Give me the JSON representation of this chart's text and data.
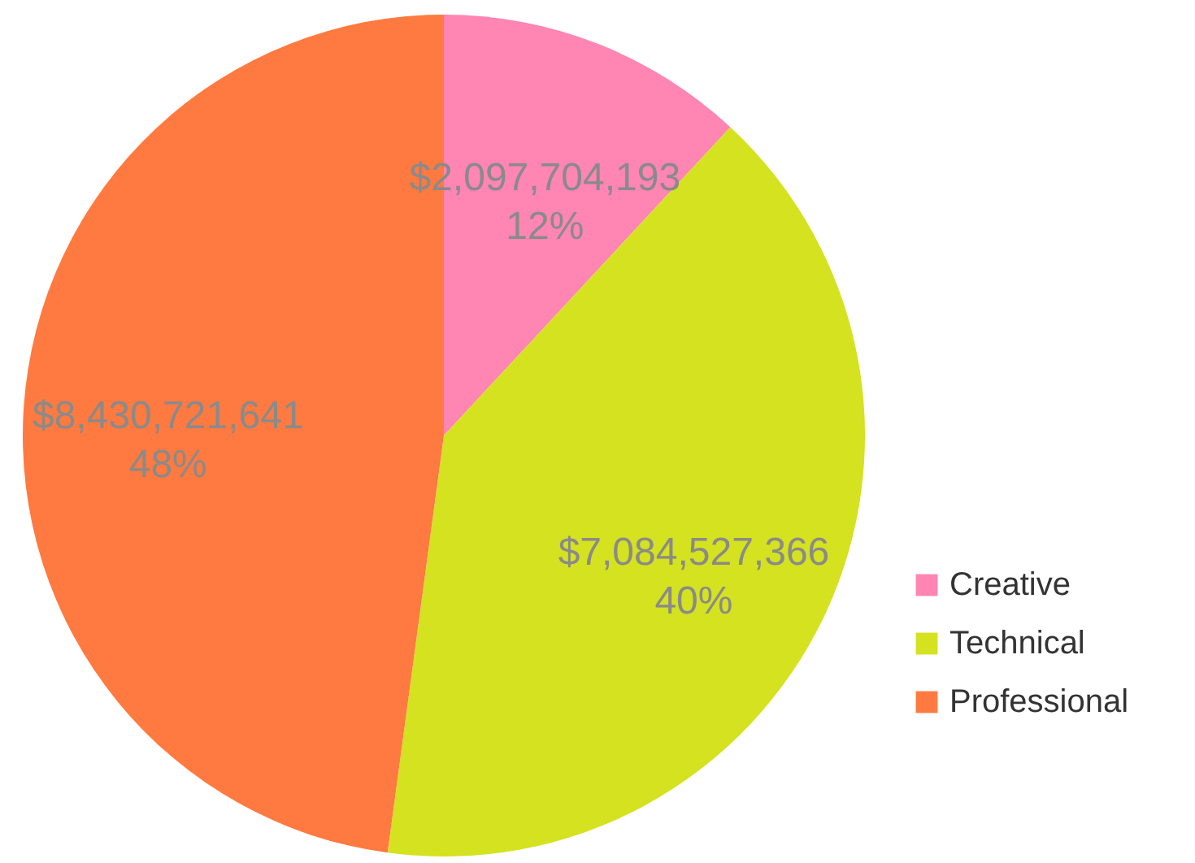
{
  "chart_data": {
    "type": "pie",
    "categories": [
      "Creative",
      "Technical",
      "Professional"
    ],
    "values": [
      2097704193,
      7084527366,
      8430721641
    ],
    "colors": [
      "#ff85b3",
      "#d4e21f",
      "#ff7a40"
    ],
    "value_labels": [
      "$2,097,704,193\n12%",
      "$7,084,527,366\n40%",
      "$8,430,721,641\n48%"
    ],
    "legend": "right"
  }
}
